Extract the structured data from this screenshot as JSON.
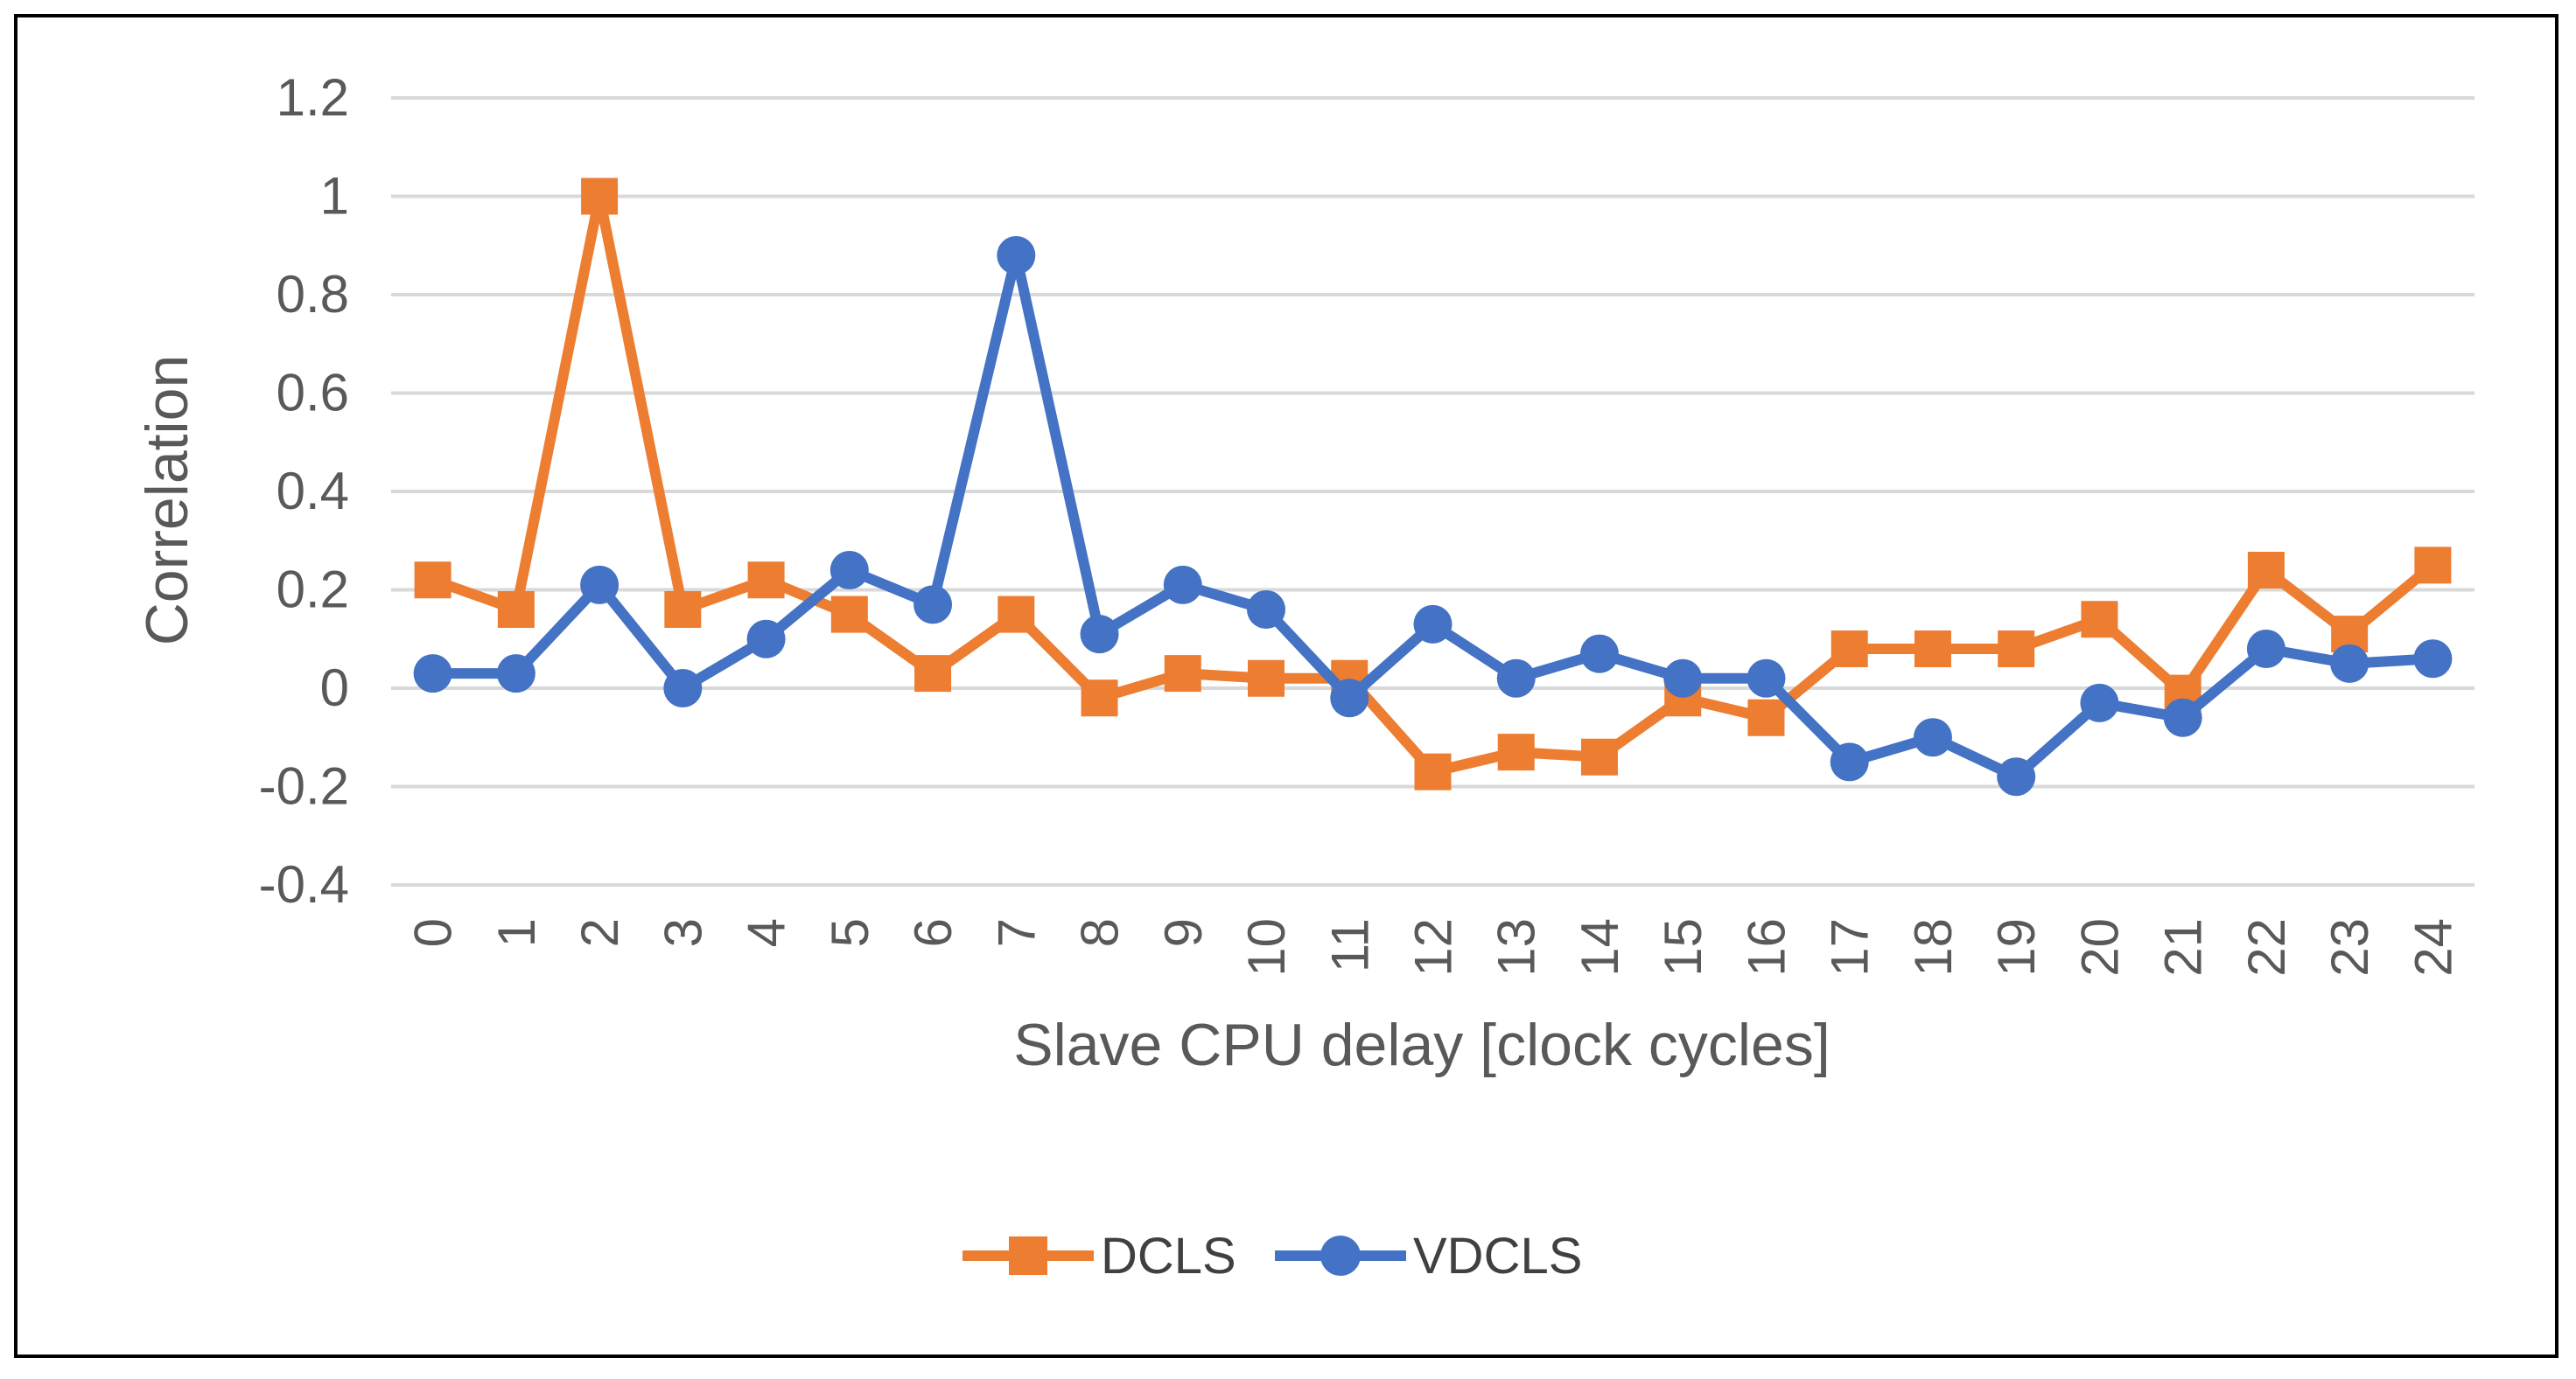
{
  "chart_data": {
    "type": "line",
    "title": "",
    "xlabel": "Slave CPU delay [clock cycles]",
    "ylabel": "Correlation",
    "ylim": [
      -0.4,
      1.2
    ],
    "yticks": [
      1.2,
      1,
      0.8,
      0.6,
      0.4,
      0.2,
      0,
      -0.2,
      -0.4
    ],
    "ytick_labels": [
      "1.2",
      "1",
      "0.8",
      "0.6",
      "0.4",
      "0.2",
      "0",
      "-0.2",
      "-0.4"
    ],
    "grid": true,
    "legend_position": "bottom",
    "categories": [
      "0",
      "1",
      "2",
      "3",
      "4",
      "5",
      "6",
      "7",
      "8",
      "9",
      "10",
      "11",
      "12",
      "13",
      "14",
      "15",
      "16",
      "17",
      "18",
      "19",
      "20",
      "21",
      "22",
      "23",
      "24"
    ],
    "series": [
      {
        "name": "DCLS",
        "color": "#ED7D31",
        "marker": "square",
        "values": [
          0.22,
          0.16,
          1.0,
          0.16,
          0.22,
          0.15,
          0.03,
          0.15,
          -0.02,
          0.03,
          0.02,
          0.02,
          -0.17,
          -0.13,
          -0.14,
          -0.02,
          -0.06,
          0.08,
          0.08,
          0.08,
          0.14,
          -0.01,
          0.24,
          0.11,
          0.25
        ]
      },
      {
        "name": "VDCLS",
        "color": "#4472C4",
        "marker": "circle",
        "values": [
          0.03,
          0.03,
          0.21,
          0.0,
          0.1,
          0.24,
          0.17,
          0.88,
          0.11,
          0.21,
          0.16,
          -0.02,
          0.13,
          0.02,
          0.07,
          0.02,
          0.02,
          -0.15,
          -0.1,
          -0.18,
          -0.03,
          -0.06,
          0.08,
          0.05,
          0.06
        ]
      }
    ]
  }
}
